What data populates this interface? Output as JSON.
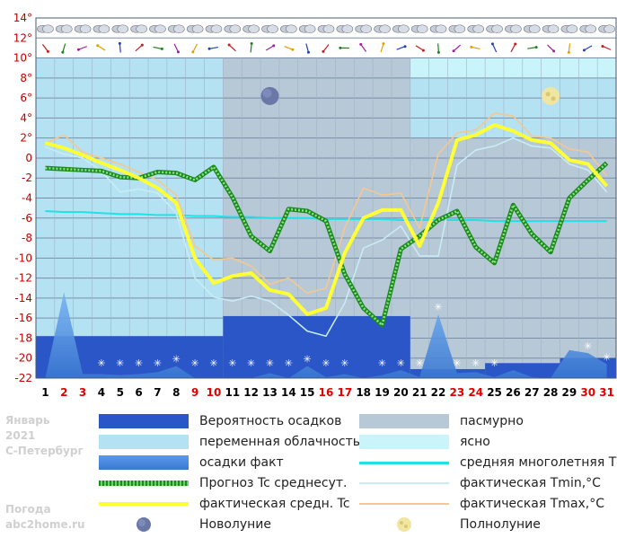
{
  "page": {
    "month": "Январь",
    "year": "2021",
    "city": "С-Петербург",
    "site_line1": "Погода",
    "site_line2": "abc2home.ru"
  },
  "colors": {
    "precip_probability": "#2a56c8",
    "variable_cloud": "#b4e2f2",
    "cloudy": "#b7c8d6",
    "clear": "#c8f4fa",
    "precip_fact": "#4a8ae0",
    "forecast": "#1a8a1a",
    "norm": "#20e0e8",
    "actual": "#ffff33",
    "tmin": "#c8ecf4",
    "tmax": "#f4c890",
    "weekend": "#e00000",
    "weekday": "#000000"
  },
  "legend": [
    {
      "key": "precip_probability",
      "label": "Вероятность осадков"
    },
    {
      "key": "cloudy",
      "label": "пасмурно"
    },
    {
      "key": "variable_cloud",
      "label": "переменная облачность"
    },
    {
      "key": "clear",
      "label": "ясно"
    },
    {
      "key": "precip_fact",
      "label": "осадки факт"
    },
    {
      "key": "norm",
      "label": "средняя многолетняя T°C"
    },
    {
      "key": "forecast",
      "label": "Прогноз Tc среднесут."
    },
    {
      "key": "tmin",
      "label": "фактическая Tmin,°C"
    },
    {
      "key": "actual",
      "label": "фактическая средн. Tc"
    },
    {
      "key": "tmax",
      "label": "фактическая Tmax,°C"
    },
    {
      "key": "new_moon",
      "label": "Новолуние"
    },
    {
      "key": "full_moon",
      "label": "Полнолуние"
    }
  ],
  "chart_data": {
    "type": "line",
    "y_ticks": [
      "14°",
      "12°",
      "10°",
      "8°",
      "6°",
      "4°",
      "2°",
      "0",
      "-2",
      "-4",
      "-6",
      "-8",
      "-10",
      "-12",
      "-14",
      "-16",
      "-18",
      "-20",
      "-22"
    ],
    "ylim": [
      -22,
      14
    ],
    "x": [
      1,
      2,
      3,
      4,
      5,
      6,
      7,
      8,
      9,
      10,
      11,
      12,
      13,
      14,
      15,
      16,
      17,
      18,
      19,
      20,
      21,
      22,
      23,
      24,
      25,
      26,
      27,
      28,
      29,
      30,
      31
    ],
    "weekend_days": [
      2,
      3,
      9,
      10,
      16,
      17,
      23,
      24,
      30,
      31
    ],
    "series": [
      {
        "key": "actual",
        "name": "фактическая средн. Tc",
        "values": [
          1.5,
          1.0,
          0.3,
          -0.5,
          -1.2,
          -2.0,
          -3.0,
          -4.5,
          -10,
          -12.5,
          -11.8,
          -11.5,
          -13.2,
          -13.6,
          -15.6,
          -15,
          -9.5,
          -6,
          -5.2,
          -5.2,
          -8.8,
          -4.5,
          1.8,
          2.3,
          3.3,
          2.7,
          1.8,
          1.5,
          -0.2,
          -0.6,
          -2.8
        ]
      },
      {
        "key": "tmax",
        "name": "фактическая Tmax,°C",
        "values": [
          1.5,
          2.3,
          0.6,
          0.0,
          -0.6,
          -1.4,
          -2.2,
          -3.7,
          -8.8,
          -10.2,
          -10,
          -10.8,
          -12.6,
          -12,
          -13.5,
          -13,
          -7,
          -3,
          -3.7,
          -3.5,
          -7.0,
          0.4,
          2.5,
          2.8,
          4.5,
          4.2,
          2.2,
          2.0,
          0.9,
          0.6,
          -1.8
        ]
      },
      {
        "key": "tmin",
        "name": "фактическая Tmin,°C",
        "values": [
          1.1,
          0.4,
          0.0,
          -1.3,
          -3.4,
          -3.1,
          -3.5,
          -5.5,
          -12,
          -13.9,
          -14.3,
          -13.8,
          -14.3,
          -15.7,
          -17.3,
          -17.8,
          -14.5,
          -9.0,
          -8.2,
          -6.8,
          -9.8,
          -9.8,
          -0.7,
          0.8,
          1.2,
          2.0,
          1.2,
          1.0,
          -0.6,
          -1.2,
          -3.4
        ]
      },
      {
        "key": "forecast",
        "name": "Прогноз Tc среднесут.",
        "values": [
          -1.0,
          -1.1,
          -1.2,
          -1.3,
          -1.9,
          -2.0,
          -1.4,
          -1.5,
          -2.2,
          -0.9,
          -3.9,
          -7.8,
          -9.3,
          -5.1,
          -5.3,
          -6.3,
          -11.6,
          -15.0,
          -16.7,
          -9.1,
          -7.8,
          -6.2,
          -5.3,
          -8.9,
          -10.5,
          -4.7,
          -7.6,
          -9.4,
          -4.0,
          -2.2,
          -0.5
        ]
      },
      {
        "key": "norm",
        "name": "средняя многолетняя T°C",
        "values": [
          -5.3,
          -5.4,
          -5.4,
          -5.5,
          -5.6,
          -5.6,
          -5.7,
          -5.7,
          -5.8,
          -5.8,
          -5.9,
          -5.9,
          -6.0,
          -6.0,
          -6.0,
          -6.1,
          -6.1,
          -6.1,
          -6.1,
          -6.2,
          -6.2,
          -6.2,
          -6.2,
          -6.2,
          -6.3,
          -6.3,
          -6.3,
          -6.3,
          -6.3,
          -6.3,
          -6.3
        ]
      },
      {
        "key": "precip_fact",
        "name": "осадки факт",
        "values": [
          -22,
          -13.4,
          -21.6,
          -21.6,
          -21.7,
          -21.6,
          -21.4,
          -20.8,
          -22,
          -22,
          -22,
          -22,
          -21.5,
          -22,
          -20.8,
          -21.9,
          -21.6,
          -22,
          -21.7,
          -21.2,
          -21.9,
          -15.6,
          -21.5,
          -21.4,
          -21.9,
          -21.2,
          -21.9,
          -22,
          -19.2,
          -19.5,
          -20.6
        ]
      }
    ],
    "precip_probability_bands": [
      {
        "from": 0.5,
        "to": 10.5,
        "level": -17.8
      },
      {
        "from": 10.5,
        "to": 20.5,
        "level": -15.8
      },
      {
        "from": 20.5,
        "to": 24.5,
        "level": -21.1
      },
      {
        "from": 24.5,
        "to": 28.5,
        "level": -20.5
      },
      {
        "from": 28.5,
        "to": 31.5,
        "level": -20.0
      }
    ],
    "sky_bands": [
      {
        "from": 0.5,
        "to": 10.5,
        "key": "variable_cloud",
        "level": 10
      },
      {
        "from": 10.5,
        "to": 20.5,
        "key": "cloudy",
        "level": 10
      },
      {
        "from": 20.5,
        "to": 31.5,
        "key": "variable_cloud",
        "level": 10
      },
      {
        "from": 20.5,
        "to": 31.5,
        "key": "clear",
        "level": 10
      },
      {
        "from": 20.5,
        "to": 31.5,
        "key": "cloudy",
        "level": 2
      }
    ],
    "snow_markers": [
      4,
      5,
      6,
      7,
      8,
      9,
      10,
      11,
      12,
      13,
      14,
      15,
      16,
      17,
      19,
      20,
      21,
      22,
      23,
      24,
      25,
      30,
      31
    ],
    "moons": [
      {
        "type": "new_moon",
        "day": 13
      },
      {
        "type": "full_moon",
        "day": 28
      }
    ]
  }
}
